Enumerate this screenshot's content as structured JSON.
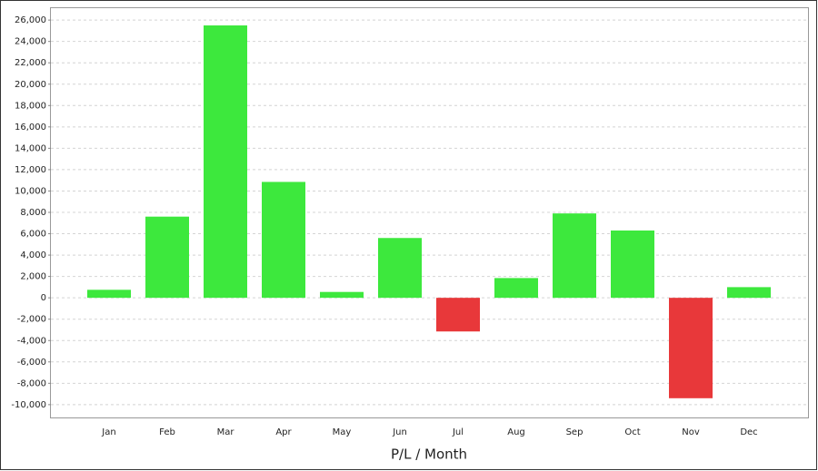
{
  "chart_data": {
    "type": "bar",
    "x_label": "P/L / Month",
    "categories": [
      "Jan",
      "Feb",
      "Mar",
      "Apr",
      "May",
      "Jun",
      "Jul",
      "Aug",
      "Sep",
      "Oct",
      "Nov",
      "Dec"
    ],
    "values": [
      750,
      7600,
      25500,
      10850,
      550,
      5600,
      -3150,
      1850,
      7900,
      6300,
      -9400,
      1000
    ],
    "positive_color": "#3de83d",
    "negative_color": "#e8383a",
    "ylim": [
      -11200,
      27200
    ],
    "yticks": [
      {
        "value": -10000,
        "label": "-10,000"
      },
      {
        "value": -8000,
        "label": "-8,000"
      },
      {
        "value": -6000,
        "label": "-6,000"
      },
      {
        "value": -4000,
        "label": "-4,000"
      },
      {
        "value": -2000,
        "label": "-2,000"
      },
      0,
      {
        "value": 2000,
        "label": "2,000"
      },
      {
        "value": 4000,
        "label": "4,000"
      },
      {
        "value": 6000,
        "label": "6,000"
      },
      {
        "value": 8000,
        "label": "8,000"
      },
      {
        "value": 10000,
        "label": "10,000"
      },
      {
        "value": 12000,
        "label": "12,000"
      },
      {
        "value": 14000,
        "label": "14,000"
      },
      {
        "value": 16000,
        "label": "16,000"
      },
      {
        "value": 18000,
        "label": "18,000"
      },
      {
        "value": 20000,
        "label": "20,000"
      },
      {
        "value": 22000,
        "label": "22,000"
      },
      {
        "value": 24000,
        "label": "24,000"
      },
      {
        "value": 26000,
        "label": "26,000"
      }
    ],
    "grid": true
  }
}
